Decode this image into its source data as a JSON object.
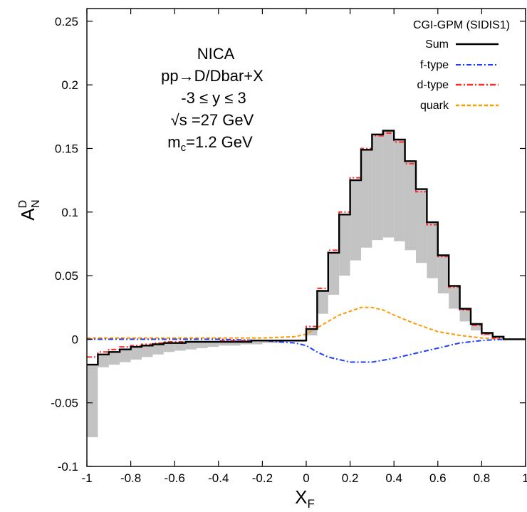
{
  "chart_data": {
    "type": "line",
    "xlabel": "X",
    "xlabel_sub": "F",
    "ylabel": "A",
    "ylabel_sup": "D",
    "ylabel_sub": "N",
    "xlim": [
      -1,
      1
    ],
    "ylim": [
      -0.1,
      0.26
    ],
    "xticks": [
      -1,
      -0.8,
      -0.6,
      -0.4,
      -0.2,
      0,
      0.2,
      0.4,
      0.6,
      0.8,
      1
    ],
    "xtick_labels": [
      "-1",
      "-0.8",
      "-0.6",
      "-0.4",
      "-0.2",
      "0",
      "0.2",
      "0.4",
      "0.6",
      "0.8",
      "1"
    ],
    "yticks": [
      -0.1,
      -0.05,
      0,
      0.05,
      0.1,
      0.15,
      0.2,
      0.25
    ],
    "ytick_labels": [
      "-0.1",
      "-0.05",
      "0",
      "0.05",
      "0.1",
      "0.15",
      "0.2",
      "0.25"
    ],
    "grid": false,
    "legend_position": "top-right",
    "legend_title": "CGI-GPM (SIDIS1)",
    "annotation": {
      "line1": "NICA",
      "line2": "pp→D/Dbar+X",
      "line3": "-3 ≤ y ≤ 3",
      "line4": "√s =27 GeV",
      "line5_main": "m",
      "line5_sub": "c",
      "line5_rest": "=1.2 GeV"
    },
    "bin_edges": [
      -1,
      -0.95,
      -0.9,
      -0.85,
      -0.8,
      -0.75,
      -0.7,
      -0.65,
      -0.6,
      -0.55,
      -0.5,
      -0.45,
      -0.4,
      -0.35,
      -0.3,
      -0.25,
      -0.2,
      -0.15,
      -0.1,
      -0.05,
      0,
      0.05,
      0.1,
      0.15,
      0.2,
      0.25,
      0.3,
      0.35,
      0.4,
      0.45,
      0.5,
      0.55,
      0.6,
      0.65,
      0.7,
      0.75,
      0.8,
      0.85,
      0.9,
      0.95,
      1
    ],
    "band_lower": [
      -0.077,
      -0.022,
      -0.02,
      -0.018,
      -0.016,
      -0.014,
      -0.012,
      -0.01,
      -0.009,
      -0.008,
      -0.007,
      -0.006,
      -0.005,
      -0.005,
      -0.004,
      -0.004,
      -0.003,
      -0.003,
      -0.002,
      -0.002,
      0.003,
      0.02,
      0.035,
      0.05,
      0.062,
      0.072,
      0.078,
      0.08,
      0.077,
      0.07,
      0.06,
      0.048,
      0.036,
      0.024,
      0.014,
      0.007,
      0.003,
      0.001,
      0.0,
      0.0
    ],
    "series": [
      {
        "name": "Sum",
        "color": "#000000",
        "style": "solid",
        "kind": "step",
        "values": [
          -0.02,
          -0.012,
          -0.01,
          -0.008,
          -0.006,
          -0.005,
          -0.004,
          -0.003,
          -0.003,
          -0.002,
          -0.002,
          -0.002,
          -0.002,
          -0.002,
          -0.002,
          -0.001,
          -0.001,
          -0.001,
          -0.001,
          -0.001,
          0.008,
          0.038,
          0.068,
          0.098,
          0.125,
          0.149,
          0.161,
          0.164,
          0.157,
          0.14,
          0.118,
          0.092,
          0.066,
          0.042,
          0.024,
          0.012,
          0.005,
          0.002,
          0.0,
          0.0
        ]
      },
      {
        "name": "f-type",
        "color": "#1f3fff",
        "style": "dashdot",
        "kind": "curve",
        "x": [
          -1,
          -0.8,
          -0.6,
          -0.4,
          -0.2,
          -0.05,
          0,
          0.05,
          0.1,
          0.2,
          0.3,
          0.4,
          0.5,
          0.6,
          0.7,
          0.8,
          0.9,
          1
        ],
        "y": [
          0.0,
          0.0,
          0.0,
          0.0,
          -0.001,
          -0.003,
          -0.005,
          -0.01,
          -0.014,
          -0.018,
          -0.018,
          -0.015,
          -0.011,
          -0.007,
          -0.003,
          -0.001,
          0.0,
          0.0
        ]
      },
      {
        "name": "d-type",
        "color": "#ff2a2a",
        "style": "dashdot",
        "kind": "step",
        "values": [
          -0.014,
          -0.01,
          -0.008,
          -0.006,
          -0.005,
          -0.004,
          -0.003,
          -0.002,
          -0.002,
          -0.002,
          -0.002,
          -0.002,
          -0.001,
          -0.001,
          -0.001,
          -0.001,
          -0.001,
          -0.001,
          -0.001,
          -0.001,
          0.01,
          0.04,
          0.07,
          0.1,
          0.127,
          0.15,
          0.16,
          0.162,
          0.155,
          0.138,
          0.116,
          0.09,
          0.065,
          0.041,
          0.023,
          0.011,
          0.004,
          0.001,
          0.0,
          0.0
        ]
      },
      {
        "name": "quark",
        "color": "#ff9900",
        "style": "dashed",
        "kind": "curve",
        "x": [
          -1,
          -0.8,
          -0.6,
          -0.4,
          -0.2,
          -0.05,
          0,
          0.05,
          0.1,
          0.15,
          0.2,
          0.25,
          0.3,
          0.35,
          0.4,
          0.5,
          0.6,
          0.7,
          0.8,
          0.9,
          1
        ],
        "y": [
          0.001,
          0.001,
          0.001,
          0.001,
          0.001,
          0.002,
          0.004,
          0.009,
          0.014,
          0.019,
          0.022,
          0.025,
          0.025,
          0.023,
          0.019,
          0.012,
          0.006,
          0.003,
          0.001,
          0.0,
          0.0
        ]
      }
    ]
  }
}
